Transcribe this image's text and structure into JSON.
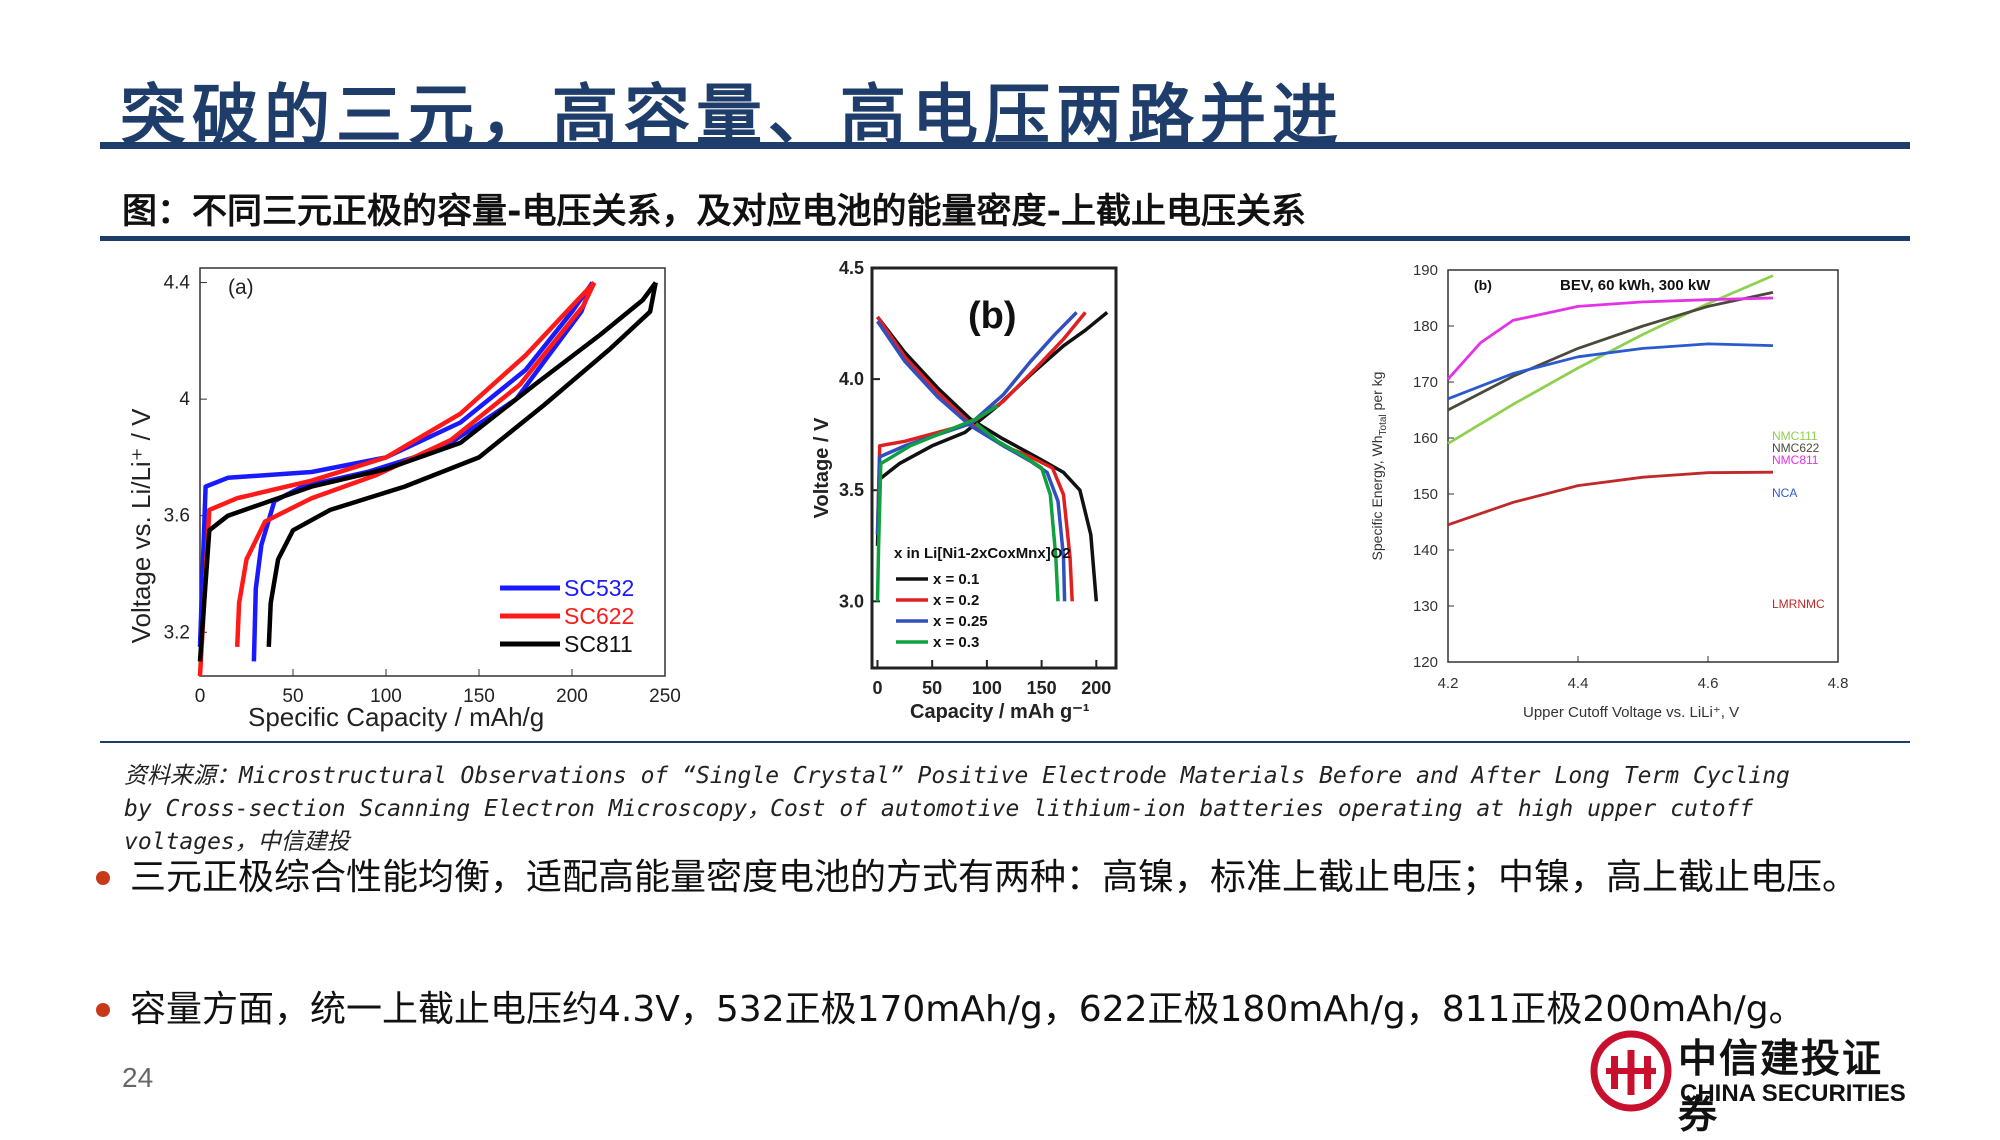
{
  "title": "突破的三元，高容量、高电压两路并进",
  "figure_caption": "图：不同三元正极的容量-电压关系，及对应电池的能量密度-上截止电压关系",
  "source": {
    "line1": "资料来源：Microstructural Observations of “Single Crystal” Positive Electrode Materials Before and After Long Term Cycling",
    "line2": "by Cross-section Scanning Electron Microscopy，Cost of automotive lithium-ion batteries operating at high upper cutoff",
    "line3": "voltages，中信建投"
  },
  "bullets": [
    "三元正极综合性能均衡，适配高能量密度电池的方式有两种：高镍，标准上截止电压；中镍，高上截止电压。",
    "容量方面，统一上截止电压约4.3V，532正极170mAh/g，622正极180mAh/g，811正极200mAh/g。"
  ],
  "page_number": "24",
  "logo": {
    "cn": "中信建投证券",
    "en": "CHINA SECURITIES"
  },
  "colors": {
    "title": "#1f3d6b",
    "bullet": "#c8391a",
    "logo": "#c8102e"
  },
  "chart_data": [
    {
      "type": "line",
      "panel_label": "(a)",
      "xlabel": "Specific Capacity / mAh/g",
      "ylabel": "Voltage vs. Li/Li⁺ / V",
      "xlim": [
        0,
        250
      ],
      "ylim": [
        3.05,
        4.45
      ],
      "xticks": [
        0,
        50,
        100,
        150,
        200,
        250
      ],
      "yticks": [
        3.2,
        3.6,
        4,
        4.4
      ],
      "ytick_labels": [
        "3.2",
        "3.6",
        "4",
        "4.4"
      ],
      "legend_position": "lower-right",
      "series": [
        {
          "name": "SC532",
          "color": "#1a1aff",
          "charge": [
            [
              0,
              3.15
            ],
            [
              3,
              3.7
            ],
            [
              15,
              3.73
            ],
            [
              60,
              3.75
            ],
            [
              100,
              3.8
            ],
            [
              140,
              3.92
            ],
            [
              175,
              4.1
            ],
            [
              200,
              4.3
            ],
            [
              211,
              4.4
            ]
          ],
          "discharge": [
            [
              211,
              4.4
            ],
            [
              205,
              4.3
            ],
            [
              170,
              4.0
            ],
            [
              130,
              3.83
            ],
            [
              90,
              3.75
            ],
            [
              55,
              3.7
            ],
            [
              40,
              3.65
            ],
            [
              33,
              3.5
            ],
            [
              30,
              3.35
            ],
            [
              29,
              3.1
            ]
          ]
        },
        {
          "name": "SC622",
          "color": "#ff1a1a",
          "charge": [
            [
              0,
              3.05
            ],
            [
              5,
              3.62
            ],
            [
              20,
              3.66
            ],
            [
              60,
              3.72
            ],
            [
              100,
              3.8
            ],
            [
              140,
              3.95
            ],
            [
              175,
              4.15
            ],
            [
              200,
              4.32
            ],
            [
              212,
              4.4
            ]
          ],
          "discharge": [
            [
              212,
              4.4
            ],
            [
              206,
              4.32
            ],
            [
              172,
              4.05
            ],
            [
              135,
              3.86
            ],
            [
              95,
              3.74
            ],
            [
              60,
              3.66
            ],
            [
              35,
              3.58
            ],
            [
              25,
              3.45
            ],
            [
              21,
              3.3
            ],
            [
              20,
              3.15
            ]
          ]
        },
        {
          "name": "SC811",
          "color": "#000000",
          "charge": [
            [
              0,
              3.1
            ],
            [
              5,
              3.55
            ],
            [
              15,
              3.6
            ],
            [
              60,
              3.7
            ],
            [
              100,
              3.76
            ],
            [
              140,
              3.85
            ],
            [
              180,
              4.05
            ],
            [
              215,
              4.22
            ],
            [
              238,
              4.34
            ],
            [
              245,
              4.4
            ]
          ],
          "discharge": [
            [
              245,
              4.4
            ],
            [
              242,
              4.3
            ],
            [
              220,
              4.17
            ],
            [
              185,
              3.98
            ],
            [
              150,
              3.8
            ],
            [
              110,
              3.7
            ],
            [
              70,
              3.62
            ],
            [
              50,
              3.55
            ],
            [
              42,
              3.45
            ],
            [
              38,
              3.3
            ],
            [
              37,
              3.15
            ]
          ]
        }
      ]
    },
    {
      "type": "line",
      "panel_label": "(b)",
      "xlabel": "Capacity / mAh g⁻¹",
      "ylabel": "Voltage / V",
      "xlim": [
        -5,
        218
      ],
      "ylim": [
        2.7,
        4.5
      ],
      "xticks": [
        0,
        50,
        100,
        150,
        200
      ],
      "yticks": [
        3.0,
        3.5,
        4.0,
        4.5
      ],
      "ytick_labels": [
        "3.0",
        "3.5",
        "4.0",
        "4.5"
      ],
      "legend_title": "x in Li[Ni1-2xCoxMnx]O2",
      "legend_position": "lower-left",
      "series": [
        {
          "name": "x = 0.1",
          "color": "#111111",
          "charge": [
            [
              0,
              3.25
            ],
            [
              2,
              3.55
            ],
            [
              20,
              3.62
            ],
            [
              50,
              3.7
            ],
            [
              80,
              3.76
            ],
            [
              110,
              3.88
            ],
            [
              140,
              4.02
            ],
            [
              170,
              4.15
            ],
            [
              190,
              4.22
            ],
            [
              210,
              4.3
            ]
          ],
          "discharge": [
            [
              0,
              4.28
            ],
            [
              25,
              4.12
            ],
            [
              55,
              3.96
            ],
            [
              85,
              3.82
            ],
            [
              115,
              3.73
            ],
            [
              145,
              3.65
            ],
            [
              170,
              3.58
            ],
            [
              185,
              3.5
            ],
            [
              195,
              3.3
            ],
            [
              200,
              3.0
            ]
          ]
        },
        {
          "name": "x = 0.2",
          "color": "#e02020",
          "charge": [
            [
              0,
              3.3
            ],
            [
              2,
              3.7
            ],
            [
              25,
              3.72
            ],
            [
              55,
              3.76
            ],
            [
              85,
              3.8
            ],
            [
              115,
              3.9
            ],
            [
              145,
              4.05
            ],
            [
              170,
              4.18
            ],
            [
              190,
              4.3
            ]
          ],
          "discharge": [
            [
              0,
              4.28
            ],
            [
              25,
              4.1
            ],
            [
              55,
              3.94
            ],
            [
              85,
              3.8
            ],
            [
              115,
              3.7
            ],
            [
              140,
              3.65
            ],
            [
              160,
              3.6
            ],
            [
              170,
              3.48
            ],
            [
              176,
              3.2
            ],
            [
              178,
              3.0
            ]
          ]
        },
        {
          "name": "x = 0.25",
          "color": "#3050c0",
          "charge": [
            [
              0,
              3.3
            ],
            [
              2,
              3.65
            ],
            [
              25,
              3.7
            ],
            [
              55,
              3.75
            ],
            [
              85,
              3.8
            ],
            [
              115,
              3.93
            ],
            [
              140,
              4.08
            ],
            [
              162,
              4.2
            ],
            [
              182,
              4.3
            ]
          ],
          "discharge": [
            [
              0,
              4.26
            ],
            [
              25,
              4.08
            ],
            [
              55,
              3.92
            ],
            [
              85,
              3.79
            ],
            [
              115,
              3.7
            ],
            [
              140,
              3.63
            ],
            [
              155,
              3.58
            ],
            [
              165,
              3.45
            ],
            [
              170,
              3.2
            ],
            [
              171,
              3.0
            ]
          ]
        },
        {
          "name": "x = 0.3",
          "color": "#10a040",
          "charge": [
            [
              0,
              3.0
            ],
            [
              1,
              3.25
            ],
            [
              3,
              3.62
            ],
            [
              30,
              3.7
            ],
            [
              60,
              3.76
            ],
            [
              90,
              3.82
            ],
            [
              110,
              3.88
            ]
          ],
          "discharge": [
            [
              90,
              3.8
            ],
            [
              110,
              3.72
            ],
            [
              135,
              3.65
            ],
            [
              150,
              3.6
            ],
            [
              158,
              3.48
            ],
            [
              163,
              3.2
            ],
            [
              165,
              3.0
            ]
          ]
        }
      ]
    },
    {
      "type": "line",
      "panel_label": "(b)",
      "title": "BEV, 60 kWh, 300 kW",
      "xlabel": "Upper Cutoff Voltage vs. LiLi⁺, V",
      "ylabel": "Specific Energy, Wh",
      "ylabel_sub": "Total",
      "ylabel_tail": " per kg",
      "xlim": [
        4.2,
        4.8
      ],
      "ylim": [
        120,
        190
      ],
      "xticks": [
        4.2,
        4.4,
        4.6,
        4.8
      ],
      "xtick_labels": [
        "4.2",
        "4.4",
        "4.6",
        "4.8"
      ],
      "yticks": [
        120,
        130,
        140,
        150,
        160,
        170,
        180,
        190
      ],
      "legend_position": "right (inline labels)",
      "series": [
        {
          "name": "NMC111",
          "color": "#8fd14f",
          "points": [
            [
              4.2,
              159
            ],
            [
              4.3,
              166
            ],
            [
              4.4,
              172.5
            ],
            [
              4.5,
              178.5
            ],
            [
              4.6,
              184
            ],
            [
              4.7,
              189
            ]
          ]
        },
        {
          "name": "NMC622",
          "color": "#4a4a3a",
          "points": [
            [
              4.2,
              165
            ],
            [
              4.3,
              171
            ],
            [
              4.4,
              176
            ],
            [
              4.5,
              180
            ],
            [
              4.6,
              183.5
            ],
            [
              4.7,
              186
            ]
          ]
        },
        {
          "name": "NMC811",
          "color": "#e632e6",
          "points": [
            [
              4.2,
              170.5
            ],
            [
              4.25,
              177
            ],
            [
              4.3,
              181
            ],
            [
              4.4,
              183.5
            ],
            [
              4.5,
              184.3
            ],
            [
              4.6,
              184.7
            ],
            [
              4.7,
              185
            ]
          ]
        },
        {
          "name": "NCA",
          "color": "#2a5ad0",
          "points": [
            [
              4.2,
              167
            ],
            [
              4.3,
              171.5
            ],
            [
              4.4,
              174.5
            ],
            [
              4.5,
              176
            ],
            [
              4.6,
              176.8
            ],
            [
              4.7,
              176.5
            ]
          ]
        },
        {
          "name": "LMRNMC",
          "color": "#c0282a",
          "points": [
            [
              4.2,
              144.5
            ],
            [
              4.3,
              148.5
            ],
            [
              4.4,
              151.5
            ],
            [
              4.5,
              153
            ],
            [
              4.6,
              153.8
            ],
            [
              4.7,
              153.9
            ]
          ]
        }
      ]
    }
  ]
}
